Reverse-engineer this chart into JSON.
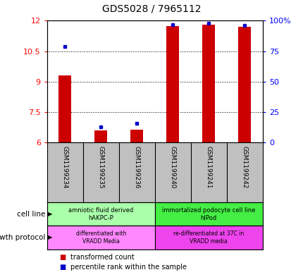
{
  "title": "GDS5028 / 7965112",
  "samples": [
    "GSM1199234",
    "GSM1199235",
    "GSM1199236",
    "GSM1199240",
    "GSM1199241",
    "GSM1199242"
  ],
  "red_values": [
    9.3,
    6.6,
    6.65,
    11.75,
    11.8,
    11.7
  ],
  "blue_values": [
    79,
    13,
    16,
    97,
    98,
    96
  ],
  "ylim_left": [
    6,
    12
  ],
  "ylim_right": [
    0,
    100
  ],
  "yticks_left": [
    6,
    7.5,
    9,
    10.5,
    12
  ],
  "ytick_labels_left": [
    "6",
    "7.5",
    "9",
    "10.5",
    "12"
  ],
  "yticks_right": [
    0,
    25,
    50,
    75,
    100
  ],
  "ytick_labels_right": [
    "0",
    "25",
    "50",
    "75",
    "100%"
  ],
  "cell_line_groups": [
    {
      "label": "amniotic fluid derived\nhAKPC-P",
      "start": 0,
      "end": 3,
      "color": "#aaffaa"
    },
    {
      "label": "immortalized podocyte cell line\nhIPod",
      "start": 3,
      "end": 6,
      "color": "#44ee44"
    }
  ],
  "growth_protocol_groups": [
    {
      "label": "differentiated with\nVRADD Media",
      "start": 0,
      "end": 3,
      "color": "#ff88ff"
    },
    {
      "label": "re-differentiated at 37C in\nVRADD media",
      "start": 3,
      "end": 6,
      "color": "#ee44ee"
    }
  ],
  "bar_width": 0.35,
  "red_color": "#cc0000",
  "blue_color": "#0000cc",
  "sample_bg_color": "#c0c0c0",
  "legend_red_label": "transformed count",
  "legend_blue_label": "percentile rank within the sample",
  "cell_line_label": "cell line",
  "growth_protocol_label": "growth protocol"
}
